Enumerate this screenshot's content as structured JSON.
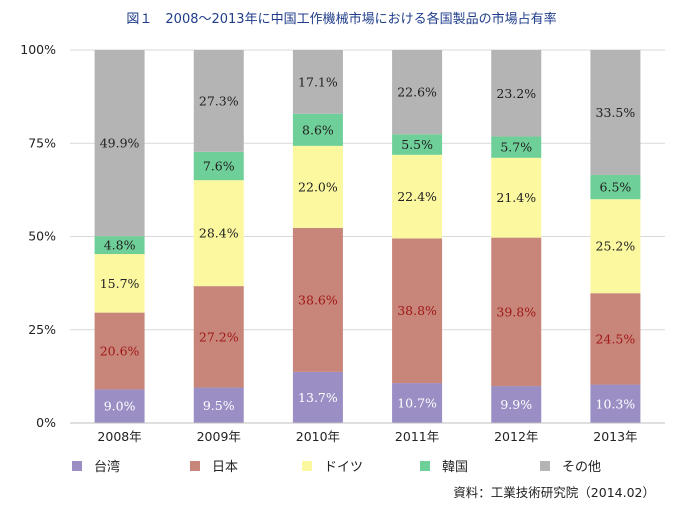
{
  "title": "図１　2008〜2013年に中国工作機械市場における各国製品の市場占有率",
  "source": "資料：工業技術研究院（2014.02）",
  "chart_data": {
    "type": "bar",
    "stacked": true,
    "percent": true,
    "categories": [
      "2008年",
      "2009年",
      "2010年",
      "2011年",
      "2012年",
      "2013年"
    ],
    "y_ticks": [
      "0%",
      "25%",
      "50%",
      "75%",
      "100%"
    ],
    "ylim": [
      0,
      100
    ],
    "legend_position": "bottom",
    "series": [
      {
        "name": "台湾",
        "color": "#9b8ec4",
        "label_color": "#ffffff",
        "values": [
          9.0,
          9.5,
          13.7,
          10.7,
          9.9,
          10.3
        ],
        "labels": [
          "9.0%",
          "9.5%",
          "13.7%",
          "10.7%",
          "9.9%",
          "10.3%"
        ]
      },
      {
        "name": "日本",
        "color": "#c8867a",
        "label_color": "#a01818",
        "values": [
          20.6,
          27.2,
          38.6,
          38.8,
          39.8,
          24.5
        ],
        "labels": [
          "20.6%",
          "27.2%",
          "38.6%",
          "38.8%",
          "39.8%",
          "24.5%"
        ]
      },
      {
        "name": "ドイツ",
        "color": "#fbf8a0",
        "label_color": "#222222",
        "values": [
          15.7,
          28.4,
          22.0,
          22.4,
          21.4,
          25.2
        ],
        "labels": [
          "15.7%",
          "28.4%",
          "22.0%",
          "22.4%",
          "21.4%",
          "25.2%"
        ]
      },
      {
        "name": "韓国",
        "color": "#6fcf98",
        "label_color": "#222222",
        "values": [
          4.8,
          7.6,
          8.6,
          5.5,
          5.7,
          6.5
        ],
        "labels": [
          "4.8%",
          "7.6%",
          "8.6%",
          "5.5%",
          "5.7%",
          "6.5%"
        ]
      },
      {
        "name": "その他",
        "color": "#b4b4b4",
        "label_color": "#222222",
        "values": [
          49.9,
          27.3,
          17.1,
          22.6,
          23.2,
          33.5
        ],
        "labels": [
          "49.9%",
          "27.3%",
          "17.1%",
          "22.6%",
          "23.2%",
          "33.5%"
        ]
      }
    ]
  }
}
